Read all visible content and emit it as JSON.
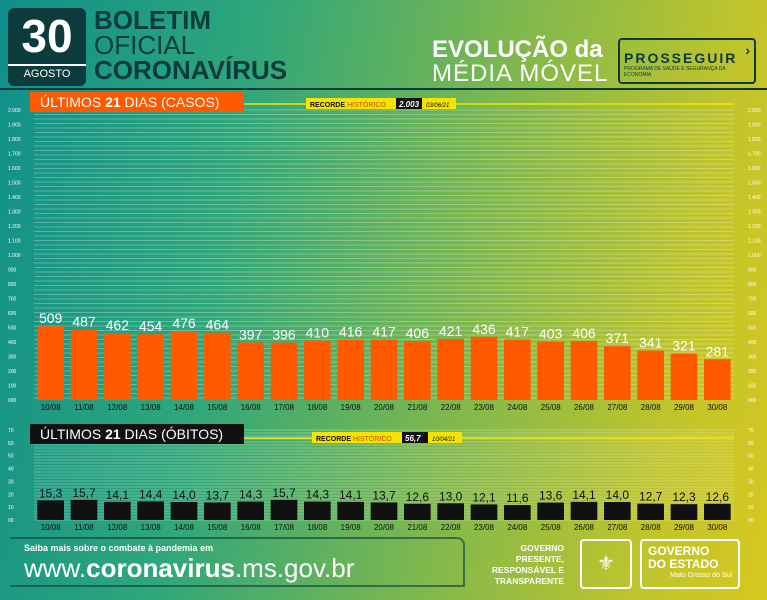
{
  "header": {
    "day": "30",
    "month": "AGOSTO",
    "boletim_line1": "BOLETIM",
    "boletim_line2": "OFICIAL",
    "boletim_line3": "CORONAVÍRUS",
    "evolucao_line1": "EVOLUÇÃO da",
    "evolucao_line2": "MÉDIA MÓVEL",
    "prosseguir": "PROSSEGUIR",
    "prosseguir_sub": "PROGRAMA DE SAÚDE E SEGURANÇA DA ECONOMIA"
  },
  "colors": {
    "cases_bar": "#ff5a00",
    "deaths_bar": "#111111",
    "highlight": "#f5e400",
    "dark": "#0b3b3c"
  },
  "footer": {
    "saiba": "Saiba mais sobre o combate à pandemia em",
    "url_prefix": "www.",
    "url_bold": "coronavirus",
    "url_suffix": ".ms.gov.br",
    "gov_presente": "GOVERNO PRESENTE, RESPONSÁVEL E TRANSPARENTE",
    "gov_estado_1": "GOVERNO",
    "gov_estado_2": "DO ESTADO",
    "gov_estado_3": "Mato Grosso do Sul"
  },
  "chart_data": [
    {
      "type": "bar",
      "title_prefix": "ÚLTIMOS ",
      "title_bold": "21",
      "title_suffix": " DIAS (CASOS)",
      "record_label_a": "RECORDE ",
      "record_label_b": "HISTÓRICO",
      "record_value": "2.003",
      "record_date": "03/06/21",
      "categories": [
        "10/08",
        "11/08",
        "12/08",
        "13/08",
        "14/08",
        "15/08",
        "16/08",
        "17/08",
        "18/08",
        "19/08",
        "20/08",
        "21/08",
        "22/08",
        "23/08",
        "24/08",
        "25/08",
        "26/08",
        "27/08",
        "28/08",
        "29/08",
        "30/08"
      ],
      "values": [
        509,
        487,
        462,
        454,
        476,
        464,
        397,
        396,
        410,
        416,
        417,
        406,
        421,
        436,
        417,
        403,
        406,
        371,
        341,
        321,
        281
      ],
      "value_labels": [
        "509",
        "487",
        "462",
        "454",
        "476",
        "464",
        "397",
        "396",
        "410",
        "416",
        "417",
        "406",
        "421",
        "436",
        "417",
        "403",
        "406",
        "371",
        "341",
        "321",
        "281"
      ],
      "ylim": [
        0,
        2000
      ],
      "yticks": [
        0,
        100,
        200,
        300,
        400,
        500,
        600,
        700,
        800,
        900,
        1000,
        1100,
        1200,
        1300,
        1400,
        1500,
        1600,
        1700,
        1800,
        1900,
        2000
      ],
      "ytick_labels": [
        "000",
        "100",
        "200",
        "300",
        "400",
        "500",
        "600",
        "700",
        "800",
        "900",
        "1.000",
        "1.100",
        "1.200",
        "1.300",
        "1.400",
        "1.500",
        "1.600",
        "1.700",
        "1.800",
        "1.900",
        "2.000"
      ],
      "grid": true
    },
    {
      "type": "bar",
      "title_prefix": "ÚLTIMOS ",
      "title_bold": "21",
      "title_suffix": " DIAS (ÓBITOS)",
      "record_label_a": "RECORDE ",
      "record_label_b": "HISTÓRICO",
      "record_value": "56,7",
      "record_date": "10/04/21",
      "categories": [
        "10/08",
        "11/08",
        "12/08",
        "13/08",
        "14/08",
        "15/08",
        "16/08",
        "17/08",
        "18/08",
        "19/08",
        "20/08",
        "21/08",
        "22/08",
        "23/08",
        "24/08",
        "25/08",
        "26/08",
        "27/08",
        "28/08",
        "29/08",
        "30/08"
      ],
      "values": [
        15.3,
        15.7,
        14.1,
        14.4,
        14.0,
        13.7,
        14.3,
        15.7,
        14.3,
        14.1,
        13.7,
        12.6,
        13.0,
        12.1,
        11.6,
        13.6,
        14.1,
        14.0,
        12.7,
        12.3,
        12.6
      ],
      "value_labels": [
        "15,3",
        "15,7",
        "14,1",
        "14,4",
        "14,0",
        "13,7",
        "14,3",
        "15,7",
        "14,3",
        "14,1",
        "13,7",
        "12,6",
        "13,0",
        "12,1",
        "11,6",
        "13,6",
        "14,1",
        "14,0",
        "12,7",
        "12,3",
        "12,6"
      ],
      "ylim": [
        0,
        70
      ],
      "yticks": [
        0,
        10,
        20,
        30,
        40,
        50,
        60,
        70
      ],
      "ytick_labels": [
        "00",
        "10",
        "20",
        "30",
        "40",
        "50",
        "60",
        "70"
      ],
      "grid": true
    }
  ]
}
